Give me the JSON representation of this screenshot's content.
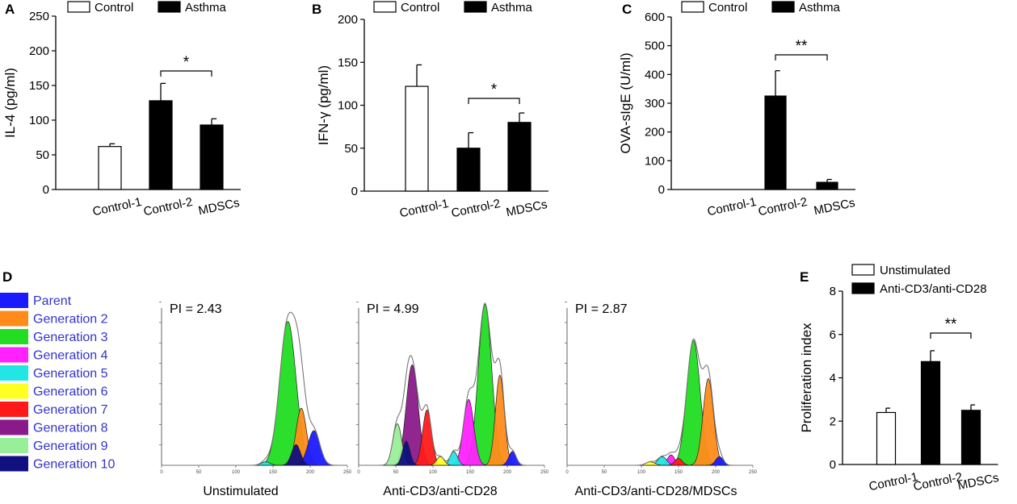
{
  "panels": {
    "A": {
      "letter": "A"
    },
    "B": {
      "letter": "B"
    },
    "C": {
      "letter": "C"
    },
    "D": {
      "letter": "D"
    },
    "E": {
      "letter": "E"
    }
  },
  "colors": {
    "control": "#ffffff",
    "asthma": "#000000",
    "parent": "#1a1aff",
    "generation_2": "#ff8c1a",
    "generation_3": "#22dd22",
    "generation_4": "#ff22ff",
    "generation_5": "#22e5e5",
    "generation_6": "#ffff22",
    "generation_7": "#ff1a1a",
    "generation_8": "#8a1a8a",
    "generation_9": "#99ee99",
    "generation_10": "#101080",
    "legend_text": "#3333cc",
    "dark_green": "#1a7a1a"
  },
  "chart_data": [
    {
      "panel": "A",
      "type": "bar",
      "ylabel": "IL-4 (pg/ml)",
      "ylim": [
        0,
        250
      ],
      "yticks": [
        0,
        50,
        100,
        150,
        200,
        250
      ],
      "categories": [
        "Control-1",
        "Control-2",
        "MDSCs"
      ],
      "legend": [
        "Control",
        "Asthma"
      ],
      "legend_placement": "top",
      "bars": [
        {
          "category": "Control-1",
          "group": "Control",
          "value": 62,
          "error": 4
        },
        {
          "category": "Control-2",
          "group": "Asthma",
          "value": 128,
          "error": 25
        },
        {
          "category": "MDSCs",
          "group": "Asthma",
          "value": 93,
          "error": 9
        }
      ],
      "significance": [
        {
          "from": "Control-2",
          "to": "MDSCs",
          "label": "*"
        }
      ]
    },
    {
      "panel": "B",
      "type": "bar",
      "ylabel": "IFN-γ (pg/ml)",
      "ylim": [
        0,
        200
      ],
      "yticks": [
        0,
        50,
        100,
        150,
        200
      ],
      "categories": [
        "Control-1",
        "Control-2",
        "MDSCs"
      ],
      "legend": [
        "Control",
        "Asthma"
      ],
      "legend_placement": "top",
      "bars": [
        {
          "category": "Control-1",
          "group": "Control",
          "value": 122,
          "error": 25
        },
        {
          "category": "Control-2",
          "group": "Asthma",
          "value": 50,
          "error": 18
        },
        {
          "category": "MDSCs",
          "group": "Asthma",
          "value": 80,
          "error": 11
        }
      ],
      "significance": [
        {
          "from": "Control-2",
          "to": "MDSCs",
          "label": "*"
        }
      ]
    },
    {
      "panel": "C",
      "type": "bar",
      "ylabel": "OVA-sIgE (U/ml)",
      "ylim": [
        0,
        600
      ],
      "yticks": [
        0,
        100,
        200,
        300,
        400,
        500,
        600
      ],
      "categories": [
        "Control-1",
        "Control-2",
        "MDSCs"
      ],
      "legend": [
        "Control",
        "Asthma"
      ],
      "legend_placement": "top",
      "bars": [
        {
          "category": "Control-1",
          "group": "Control",
          "value": 0,
          "error": 0
        },
        {
          "category": "Control-2",
          "group": "Asthma",
          "value": 325,
          "error": 88
        },
        {
          "category": "MDSCs",
          "group": "Asthma",
          "value": 25,
          "error": 10
        }
      ],
      "significance": [
        {
          "from": "Control-2",
          "to": "MDSCs",
          "label": "**"
        }
      ]
    },
    {
      "panel": "E",
      "type": "bar",
      "ylabel": "Proliferation index",
      "ylim": [
        0,
        8
      ],
      "yticks": [
        0,
        2,
        4,
        6,
        8
      ],
      "categories": [
        "Control-1",
        "Control-2",
        "MDSCs"
      ],
      "legend": [
        "Unstimulated",
        "Anti-CD3/anti-CD28"
      ],
      "legend_placement": "top",
      "bars": [
        {
          "category": "Control-1",
          "group": "Unstimulated",
          "value": 2.4,
          "error": 0.2
        },
        {
          "category": "Control-2",
          "group": "Anti-CD3/anti-CD28",
          "value": 4.75,
          "error": 0.5
        },
        {
          "category": "MDSCs",
          "group": "Anti-CD3/anti-CD28",
          "value": 2.5,
          "error": 0.25
        }
      ],
      "significance": [
        {
          "from": "Control-2",
          "to": "MDSCs",
          "label": "**"
        }
      ]
    }
  ],
  "flow": {
    "legend": [
      {
        "label": "Parent",
        "color": "#1a1aff"
      },
      {
        "label": "Generation 2",
        "color": "#ff8c1a"
      },
      {
        "label": "Generation 3",
        "color": "#22dd22"
      },
      {
        "label": "Generation 4",
        "color": "#ff22ff"
      },
      {
        "label": "Generation 5",
        "color": "#22e5e5"
      },
      {
        "label": "Generation 6",
        "color": "#ffff22"
      },
      {
        "label": "Generation 7",
        "color": "#ff1a1a"
      },
      {
        "label": "Generation 8",
        "color": "#8a1a8a"
      },
      {
        "label": "Generation 9",
        "color": "#99ee99"
      },
      {
        "label": "Generation 10",
        "color": "#101080"
      }
    ],
    "xticks": [
      0,
      50,
      100,
      150,
      200,
      250
    ],
    "plots": [
      {
        "title": "Unstimulated",
        "pi_label": "PI = 2.43",
        "peaks": [
          {
            "generation": "Generation 5",
            "center": 140,
            "height": 0.02,
            "width": 6
          },
          {
            "generation": "Generation 3",
            "center": 170,
            "height": 0.83,
            "width": 11
          },
          {
            "generation": "Generation 2",
            "center": 188,
            "height": 0.33,
            "width": 7
          },
          {
            "generation": "Parent",
            "center": 205,
            "height": 0.2,
            "width": 8
          },
          {
            "generation": "Generation 10",
            "center": 181,
            "height": 0.12,
            "width": 6
          }
        ]
      },
      {
        "title": "Anti-CD3/anti-CD28",
        "pi_label": "PI = 4.99",
        "peaks": [
          {
            "generation": "Generation 9",
            "center": 52,
            "height": 0.24,
            "width": 6
          },
          {
            "generation": "Generation 8",
            "center": 72,
            "height": 0.58,
            "width": 8
          },
          {
            "generation": "Generation 10",
            "center": 64,
            "height": 0.14,
            "width": 5
          },
          {
            "generation": "Generation 7",
            "center": 92,
            "height": 0.32,
            "width": 6
          },
          {
            "generation": "Generation 6",
            "center": 110,
            "height": 0.05,
            "width": 5
          },
          {
            "generation": "Generation 5",
            "center": 128,
            "height": 0.08,
            "width": 5
          },
          {
            "generation": "Generation 4",
            "center": 148,
            "height": 0.38,
            "width": 7
          },
          {
            "generation": "Generation 3",
            "center": 170,
            "height": 0.93,
            "width": 9
          },
          {
            "generation": "Generation 2",
            "center": 190,
            "height": 0.52,
            "width": 6
          },
          {
            "generation": "Parent",
            "center": 207,
            "height": 0.08,
            "width": 5
          }
        ]
      },
      {
        "title": "Anti-CD3/anti-CD28/MDSCs",
        "pi_label": "PI = 2.87",
        "peaks": [
          {
            "generation": "Generation 6",
            "center": 112,
            "height": 0.02,
            "width": 6
          },
          {
            "generation": "Generation 5",
            "center": 128,
            "height": 0.05,
            "width": 6
          },
          {
            "generation": "Generation 4",
            "center": 140,
            "height": 0.06,
            "width": 5
          },
          {
            "generation": "Generation 7",
            "center": 150,
            "height": 0.04,
            "width": 5
          },
          {
            "generation": "Generation 3",
            "center": 170,
            "height": 0.72,
            "width": 9
          },
          {
            "generation": "Generation 2",
            "center": 190,
            "height": 0.5,
            "width": 7
          },
          {
            "generation": "Parent",
            "center": 205,
            "height": 0.05,
            "width": 5
          }
        ]
      }
    ]
  }
}
